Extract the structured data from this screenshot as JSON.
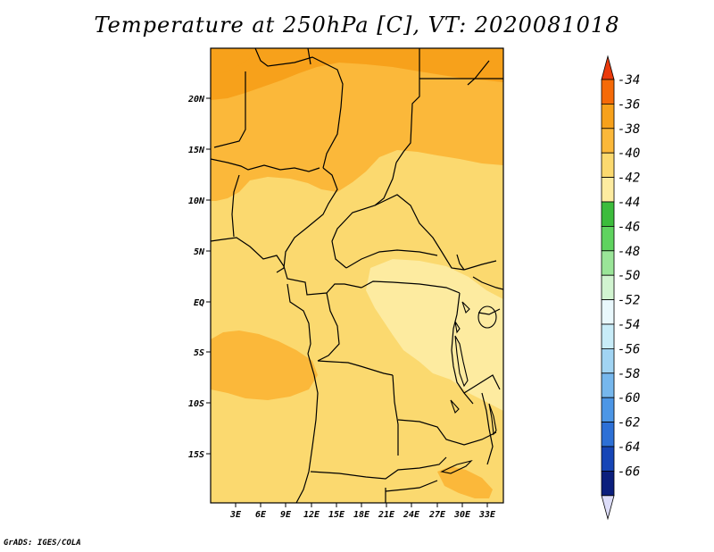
{
  "title": "Temperature at 250hPa [C], VT: 2020081018",
  "credit": "GrADS: IGES/COLA",
  "map": {
    "lat_labels": [
      "20N",
      "15N",
      "10N",
      "5N",
      "EQ",
      "5S",
      "10S",
      "15S"
    ],
    "lon_labels": [
      "3E",
      "6E",
      "9E",
      "12E",
      "15E",
      "18E",
      "21E",
      "24E",
      "27E",
      "30E",
      "33E"
    ],
    "fill_colors": {
      "minus36": "#f7a11b",
      "minus38": "#fbb83a",
      "minus40": "#fbd96f",
      "minus42": "#fdeba0"
    }
  },
  "colorbar": {
    "labels": [
      "-34",
      "-36",
      "-38",
      "-40",
      "-42",
      "-44",
      "-46",
      "-48",
      "-50",
      "-52",
      "-54",
      "-56",
      "-58",
      "-60",
      "-62",
      "-64",
      "-66"
    ],
    "colors": [
      "#ea3a0b",
      "#f56a08",
      "#f7a11b",
      "#fbb83a",
      "#fbd96f",
      "#fdeba0",
      "#3cbc3c",
      "#5fd35f",
      "#9ae598",
      "#d1f4d0",
      "#e9f8fc",
      "#c8ecf8",
      "#a1d4f3",
      "#76b7ed",
      "#4c96e6",
      "#2d70d6",
      "#1645b6",
      "#0b1f7d",
      "#ddddf9"
    ]
  }
}
